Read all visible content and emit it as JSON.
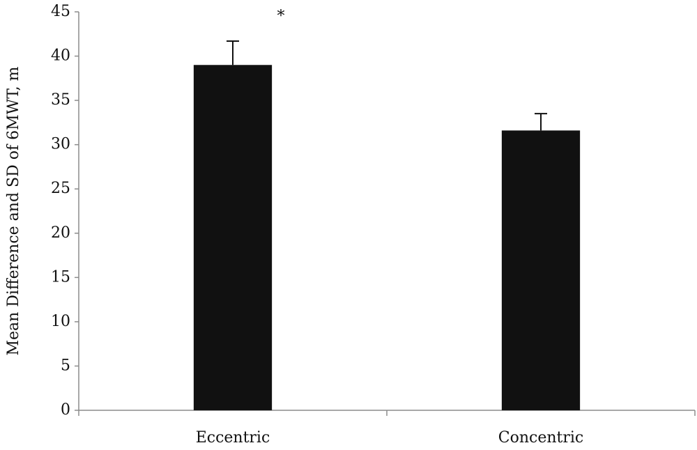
{
  "chart_data": {
    "type": "bar",
    "y_label": "Mean Difference and SD of 6MWT, m",
    "categories": [
      "Eccentric",
      "Concentric"
    ],
    "values": [
      39.0,
      31.6
    ],
    "errors": [
      2.7,
      1.9
    ],
    "color": "#111111",
    "annotations": [
      {
        "text": "*",
        "category": 0
      }
    ],
    "ylim": [
      0,
      45
    ],
    "yticks": [
      0,
      5,
      10,
      15,
      20,
      25,
      30,
      35,
      40,
      45
    ],
    "grid": false
  }
}
